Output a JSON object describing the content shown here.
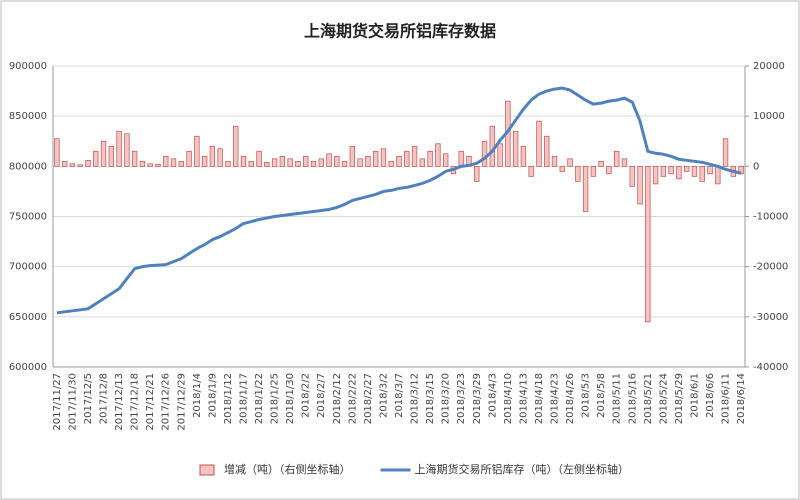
{
  "chart_data": {
    "type": "combo",
    "title": "上海期货交易所铝库存数据",
    "categories": [
      "2017/11/27",
      null,
      "2017/11/30",
      null,
      "2017/12/5",
      null,
      "2017/12/8",
      null,
      "2017/12/13",
      null,
      "2017/12/18",
      null,
      "2017/12/21",
      null,
      "2017/12/26",
      null,
      "2017/12/29",
      null,
      "2018/1/4",
      null,
      "2018/1/9",
      null,
      "2018/1/12",
      null,
      "2018/1/17",
      null,
      "2018/1/22",
      null,
      "2018/1/25",
      null,
      "2018/1/30",
      null,
      "2018/2/2",
      null,
      "2018/2/7",
      null,
      "2018/2/12",
      null,
      "2018/2/22",
      null,
      "2018/2/27",
      null,
      "2018/3/2",
      null,
      "2018/3/7",
      null,
      "2018/3/12",
      null,
      "2018/3/15",
      null,
      "2018/3/20",
      null,
      "2018/3/23",
      null,
      "2018/3/29",
      null,
      "2018/4/3",
      null,
      "2018/4/10",
      null,
      "2018/4/13",
      null,
      "2018/4/18",
      null,
      "2018/4/23",
      null,
      "2018/4/26",
      null,
      "2018/5/3",
      null,
      "2018/5/8",
      null,
      "2018/5/11",
      null,
      "2018/5/16",
      null,
      "2018/5/21",
      null,
      "2018/5/24",
      null,
      "2018/5/29",
      null,
      "2018/6/1",
      null,
      "2018/6/6",
      null,
      "2018/6/11",
      null,
      "2018/6/14"
    ],
    "series": [
      {
        "name": "增减（吨）（右侧坐标轴）",
        "type": "bar",
        "axis": "y2",
        "color": "#f4c4c4",
        "stroke": "#c0504d",
        "values": [
          5500,
          1000,
          500,
          300,
          1200,
          3000,
          5000,
          4000,
          7000,
          6500,
          3000,
          1000,
          500,
          400,
          2000,
          1500,
          1000,
          3000,
          6000,
          2000,
          4000,
          3500,
          1000,
          8000,
          2000,
          1000,
          3000,
          800,
          1500,
          2000,
          1500,
          1000,
          2000,
          1000,
          1500,
          2500,
          2000,
          1000,
          4000,
          1500,
          2000,
          3000,
          3500,
          1000,
          2000,
          3000,
          4000,
          1500,
          3000,
          4500,
          2500,
          -1500,
          3000,
          2000,
          -3000,
          5000,
          8000,
          4500,
          13000,
          7000,
          4000,
          -2000,
          9000,
          6000,
          2000,
          -1000,
          1500,
          -3000,
          -9000,
          -2000,
          1000,
          -1500,
          3000,
          1500,
          -4000,
          -7500,
          -31000,
          -3500,
          -2000,
          -1500,
          -2500,
          -1000,
          -2000,
          -3000,
          -1500,
          -3500,
          5500,
          -2000,
          -1500
        ]
      },
      {
        "name": "上海期货交易所铝库存（吨）（左侧坐标轴）",
        "type": "line",
        "color": "#4f81bd",
        "values": [
          654000,
          655000,
          656000,
          657000,
          658000,
          663000,
          668000,
          673000,
          678000,
          688000,
          698000,
          700000,
          701000,
          701500,
          702000,
          705000,
          708000,
          713000,
          718000,
          722000,
          727000,
          730000,
          734000,
          738000,
          743000,
          745000,
          747000,
          748500,
          750000,
          751000,
          752000,
          753000,
          754000,
          755000,
          756000,
          757000,
          759000,
          762000,
          766000,
          768000,
          770000,
          772000,
          775000,
          776000,
          778000,
          779000,
          781000,
          783000,
          786000,
          790000,
          795000,
          797000,
          800000,
          801000,
          803000,
          808000,
          815000,
          826000,
          835000,
          846000,
          857000,
          866000,
          872000,
          875000,
          877000,
          878000,
          876000,
          871000,
          866000,
          862000,
          863000,
          865000,
          866000,
          868000,
          864000,
          845000,
          815000,
          813000,
          812000,
          810000,
          807000,
          806000,
          805000,
          804000,
          802000,
          800000,
          797000,
          795000,
          793000
        ]
      }
    ],
    "ylim": [
      600000,
      900000
    ],
    "yticks": [
      600000,
      650000,
      700000,
      750000,
      800000,
      850000,
      900000
    ],
    "y2lim": [
      -40000,
      20000
    ],
    "y2ticks": [
      -40000,
      -30000,
      -20000,
      -10000,
      0,
      10000,
      20000
    ],
    "grid": true
  }
}
